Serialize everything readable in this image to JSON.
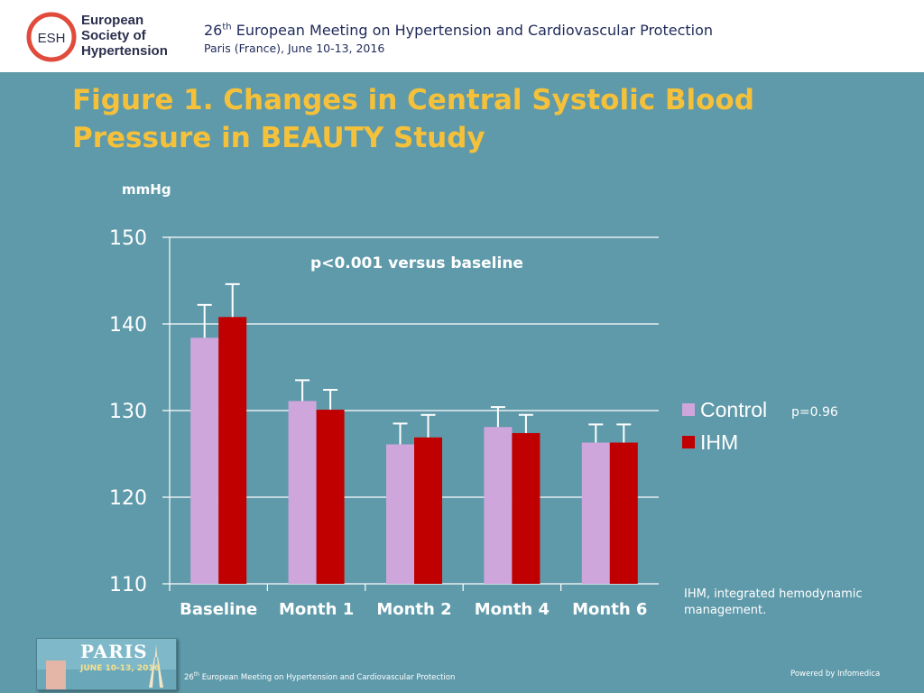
{
  "header": {
    "logo_abbr": "ESH",
    "logo_lines": [
      "European",
      "Society of",
      "Hypertension"
    ],
    "meeting_num": "26",
    "meeting_ord": "th",
    "meeting_rest": "European Meeting on Hypertension and Cardiovascular Protection",
    "meeting_sub": "Paris (France), June 10-13, 2016"
  },
  "figure": {
    "title": "Figure 1. Changes in Central Systolic Blood Pressure in BEAUTY Study",
    "p_value_label": "p=0.96",
    "footnote": "IHM, integrated hemodynamic management."
  },
  "chart_data": {
    "type": "bar",
    "title": "Figure 1. Changes in Central Systolic Blood Pressure in BEAUTY Study",
    "ylabel": "mmHg",
    "xlabel": "",
    "ylim": [
      110,
      150
    ],
    "yticks": [
      110,
      120,
      130,
      140,
      150
    ],
    "grid": true,
    "legend_position": "right",
    "categories": [
      "Baseline",
      "Month 1",
      "Month 2",
      "Month 4",
      "Month 6"
    ],
    "series": [
      {
        "name": "Control",
        "color": "#cfa6dc",
        "values": [
          138.4,
          131.1,
          126.1,
          128.1,
          126.3
        ],
        "error_top": [
          142.2,
          133.5,
          128.5,
          130.4,
          128.4
        ]
      },
      {
        "name": "IHM",
        "color": "#c00000",
        "values": [
          140.8,
          130.1,
          126.9,
          127.4,
          126.3
        ],
        "error_top": [
          144.6,
          132.4,
          129.5,
          129.5,
          128.4
        ]
      }
    ],
    "annotation": "p<0.001 versus baseline"
  },
  "footer": {
    "badge_city": "PARIS",
    "badge_dates": "JUNE 10-13, 2016",
    "text_num": "26",
    "text_ord": "th",
    "text_rest": "European Meeting on Hypertension and Cardiovascular Protection",
    "powered": "Powered by Infomedica"
  }
}
